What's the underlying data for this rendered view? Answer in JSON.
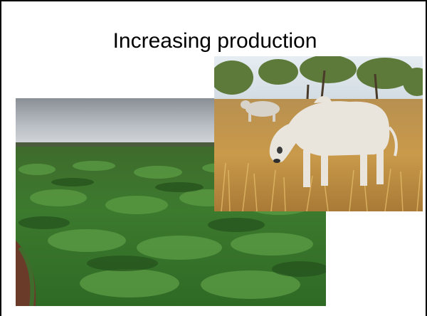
{
  "slide": {
    "title": "Increasing production"
  },
  "images": {
    "pasture": {
      "icon": "grass-pasture-photo"
    },
    "cattle": {
      "icon": "brahman-cattle-photo"
    }
  }
}
